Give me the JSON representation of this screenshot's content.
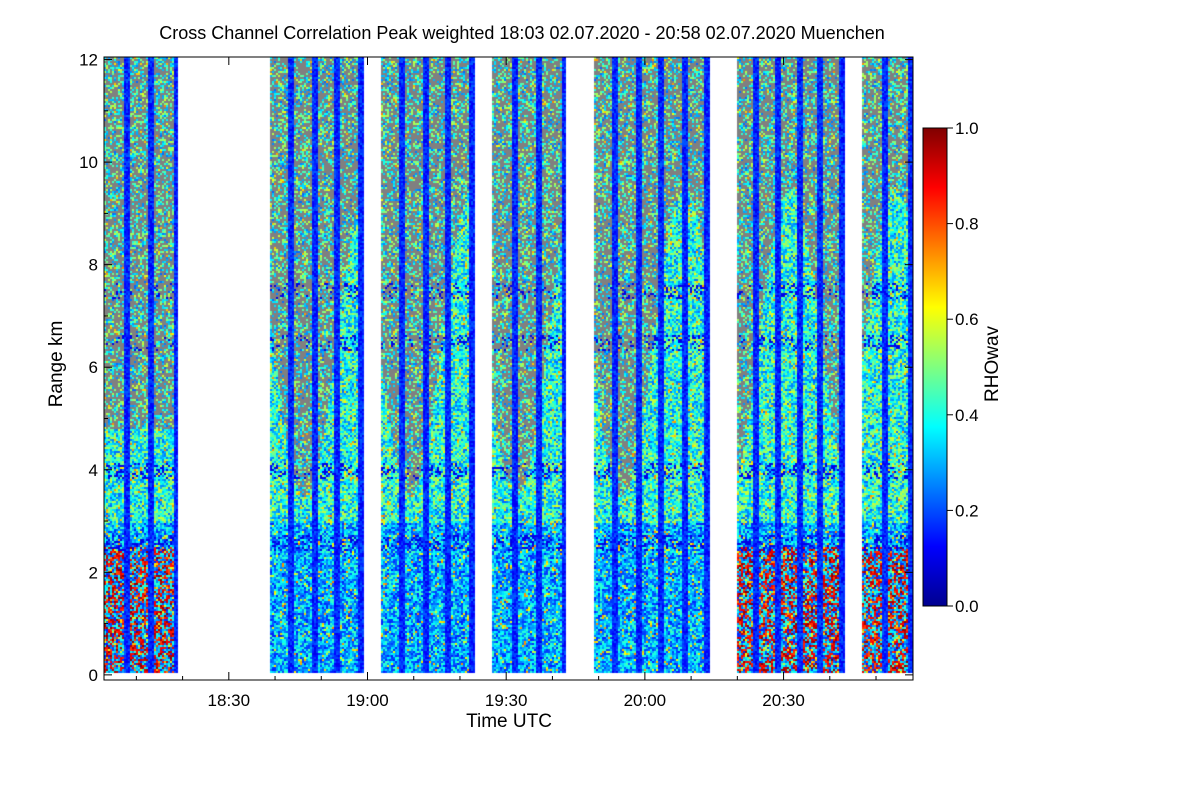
{
  "chart_data": {
    "type": "heatmap",
    "title": "Cross Channel Correlation Peak weighted   18:03 02.07.2020 - 20:58 02.07.2020 Muenchen",
    "xlabel": "Time UTC",
    "ylabel": "Range km",
    "colorbar_label": "RHOwav",
    "x_range_minutes_utc": [
      1083,
      1258
    ],
    "y_range_km": [
      -0.1,
      12.05
    ],
    "x_ticks": [
      {
        "label": "18:30",
        "minute": 1110
      },
      {
        "label": "19:00",
        "minute": 1140
      },
      {
        "label": "19:30",
        "minute": 1170
      },
      {
        "label": "20:00",
        "minute": 1200
      },
      {
        "label": "20:30",
        "minute": 1230
      }
    ],
    "y_ticks": [
      {
        "label": "0",
        "value": 0
      },
      {
        "label": "2",
        "value": 2
      },
      {
        "label": "4",
        "value": 4
      },
      {
        "label": "6",
        "value": 6
      },
      {
        "label": "8",
        "value": 8
      },
      {
        "label": "10",
        "value": 10
      },
      {
        "label": "12",
        "value": 12
      }
    ],
    "colorbar_range": [
      0.0,
      1.0
    ],
    "colorbar_ticks": [
      "0.0",
      "0.2",
      "0.4",
      "0.6",
      "0.8",
      "1.0"
    ],
    "colormap": "jet",
    "no_signal_color": "#808080",
    "data_blocks_utc": [
      [
        "18:03",
        "18:19"
      ],
      [
        "18:39",
        "18:59"
      ],
      [
        "19:03",
        "19:23"
      ],
      [
        "19:27",
        "19:43"
      ],
      [
        "19:49",
        "20:14"
      ],
      [
        "20:20",
        "20:43"
      ],
      [
        "20:47",
        "20:58"
      ]
    ],
    "typical_values": {
      "aerosol_layer_0_to_3km": 0.3,
      "cloud_layers_km": [
        2.6,
        4.0,
        6.5,
        7.5
      ],
      "cloud_value": 0.1,
      "upper_atmosphere_value": 0.4,
      "near_surface_red_values": 0.9
    }
  }
}
